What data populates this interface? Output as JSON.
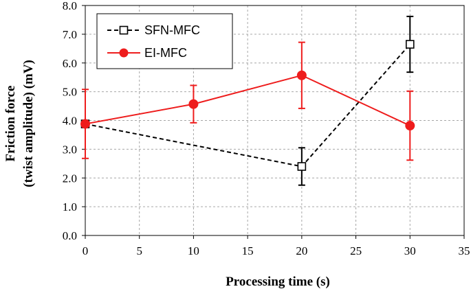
{
  "chart_data": {
    "type": "line",
    "xlabel": "Processing time (s)",
    "ylabel_lines": [
      "Friction force",
      "(twist amplitude) (mV)"
    ],
    "xlim": [
      0,
      35
    ],
    "ylim": [
      0,
      8
    ],
    "x_ticks": [
      "0",
      "5",
      "10",
      "15",
      "20",
      "25",
      "30",
      "35"
    ],
    "y_ticks": [
      "0.0",
      "1.0",
      "2.0",
      "3.0",
      "4.0",
      "5.0",
      "6.0",
      "7.0",
      "8.0"
    ],
    "grid": true,
    "legend_position": "top-left",
    "series": [
      {
        "name": "SFN-MFC",
        "color": "#000000",
        "line_style": "dashed",
        "marker": "open-square",
        "points": [
          {
            "x": 0,
            "y": 3.88,
            "err": 0.0
          },
          {
            "x": 20,
            "y": 2.4,
            "err": 0.65
          },
          {
            "x": 30,
            "y": 6.65,
            "err": 0.97
          }
        ]
      },
      {
        "name": "EI-MFC",
        "color": "#ee1c1c",
        "line_style": "solid",
        "marker": "filled-circle",
        "points": [
          {
            "x": 0,
            "y": 3.88,
            "err": 1.2
          },
          {
            "x": 10,
            "y": 4.57,
            "err": 0.65
          },
          {
            "x": 20,
            "y": 5.57,
            "err": 1.15
          },
          {
            "x": 30,
            "y": 3.82,
            "err": 1.2
          }
        ]
      }
    ]
  }
}
